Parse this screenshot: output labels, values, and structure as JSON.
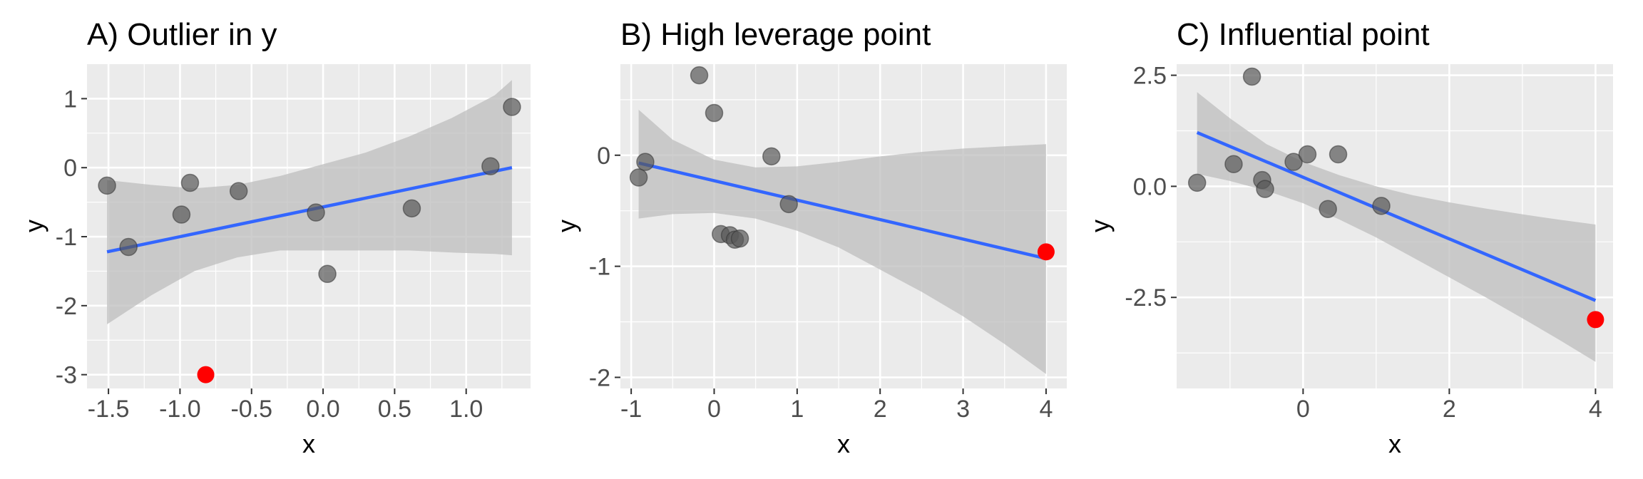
{
  "colors": {
    "panel_background": "#ebebeb",
    "grid_major": "#ffffff",
    "confidence_band": "#bdbdbd",
    "fit_line": "#3366ff",
    "points": "#595959",
    "highlight_point": "#ff0000"
  },
  "chart_data": [
    {
      "type": "scatter",
      "title": "A) Outlier in y",
      "xlabel": "x",
      "ylabel": "y",
      "xlim": [
        -1.65,
        1.45
      ],
      "ylim": [
        -3.2,
        1.5
      ],
      "xticks": [
        -1.5,
        -1.0,
        -0.5,
        0.0,
        0.5,
        1.0
      ],
      "xtick_labels": [
        "-1.5",
        "-1.0",
        "-0.5",
        "0.0",
        "0.5",
        "1.0"
      ],
      "yticks": [
        -3,
        -2,
        -1,
        0,
        1
      ],
      "ytick_labels": [
        "-3",
        "-2",
        "-1",
        "0",
        "1"
      ],
      "grid": true,
      "points": [
        {
          "x": -1.51,
          "y": -0.26
        },
        {
          "x": -1.36,
          "y": -1.15
        },
        {
          "x": -0.99,
          "y": -0.68
        },
        {
          "x": -0.93,
          "y": -0.22
        },
        {
          "x": -0.59,
          "y": -0.34
        },
        {
          "x": -0.05,
          "y": -0.65
        },
        {
          "x": 0.03,
          "y": -1.54
        },
        {
          "x": 0.62,
          "y": -0.59
        },
        {
          "x": 1.17,
          "y": 0.02
        },
        {
          "x": 1.32,
          "y": 0.88
        }
      ],
      "highlight": [
        {
          "x": -0.82,
          "y": -3.0
        }
      ],
      "fit": {
        "x": [
          -1.51,
          1.32
        ],
        "y": [
          -1.22,
          0.0
        ]
      },
      "band": [
        {
          "x": -1.51,
          "lo": -2.27,
          "hi": -0.18
        },
        {
          "x": -1.2,
          "lo": -1.85,
          "hi": -0.25
        },
        {
          "x": -0.9,
          "lo": -1.5,
          "hi": -0.3
        },
        {
          "x": -0.6,
          "lo": -1.3,
          "hi": -0.25
        },
        {
          "x": -0.3,
          "lo": -1.2,
          "hi": -0.12
        },
        {
          "x": 0.0,
          "lo": -1.2,
          "hi": 0.05
        },
        {
          "x": 0.3,
          "lo": -1.2,
          "hi": 0.22
        },
        {
          "x": 0.6,
          "lo": -1.2,
          "hi": 0.45
        },
        {
          "x": 0.9,
          "lo": -1.23,
          "hi": 0.72
        },
        {
          "x": 1.2,
          "lo": -1.25,
          "hi": 1.05
        },
        {
          "x": 1.32,
          "lo": -1.27,
          "hi": 1.27
        }
      ]
    },
    {
      "type": "scatter",
      "title": "B) High leverage point",
      "xlabel": "x",
      "ylabel": "y",
      "xlim": [
        -1.13,
        4.25
      ],
      "ylim": [
        -2.1,
        0.82
      ],
      "xticks": [
        -1,
        0,
        1,
        2,
        3,
        4
      ],
      "xtick_labels": [
        "-1",
        "0",
        "1",
        "2",
        "3",
        "4"
      ],
      "yticks": [
        -2,
        -1,
        0
      ],
      "ytick_labels": [
        "-2",
        "-1",
        "0"
      ],
      "grid": true,
      "points": [
        {
          "x": -0.91,
          "y": -0.2
        },
        {
          "x": -0.83,
          "y": -0.06
        },
        {
          "x": -0.18,
          "y": 0.72
        },
        {
          "x": 0.0,
          "y": 0.38
        },
        {
          "x": 0.08,
          "y": -0.71
        },
        {
          "x": 0.19,
          "y": -0.72
        },
        {
          "x": 0.25,
          "y": -0.76
        },
        {
          "x": 0.31,
          "y": -0.75
        },
        {
          "x": 0.69,
          "y": -0.01
        },
        {
          "x": 0.9,
          "y": -0.44
        }
      ],
      "highlight": [
        {
          "x": 4.0,
          "y": -0.87
        }
      ],
      "fit": {
        "x": [
          -0.91,
          4.0
        ],
        "y": [
          -0.07,
          -0.93
        ]
      },
      "band": [
        {
          "x": -0.91,
          "lo": -0.57,
          "hi": 0.41
        },
        {
          "x": -0.5,
          "lo": -0.53,
          "hi": 0.14
        },
        {
          "x": 0.0,
          "lo": -0.52,
          "hi": -0.04
        },
        {
          "x": 0.5,
          "lo": -0.57,
          "hi": -0.11
        },
        {
          "x": 1.0,
          "lo": -0.68,
          "hi": -0.1
        },
        {
          "x": 1.5,
          "lo": -0.83,
          "hi": -0.06
        },
        {
          "x": 2.0,
          "lo": -1.03,
          "hi": -0.01
        },
        {
          "x": 2.5,
          "lo": -1.23,
          "hi": 0.03
        },
        {
          "x": 3.0,
          "lo": -1.45,
          "hi": 0.06
        },
        {
          "x": 3.5,
          "lo": -1.7,
          "hi": 0.08
        },
        {
          "x": 4.0,
          "lo": -1.97,
          "hi": 0.1
        }
      ]
    },
    {
      "type": "scatter",
      "title": "C) Influential point",
      "xlabel": "x",
      "ylabel": "y",
      "xlim": [
        -1.73,
        4.24
      ],
      "ylim": [
        -4.55,
        2.75
      ],
      "xticks": [
        0,
        2,
        4
      ],
      "xtick_labels": [
        "0",
        "2",
        "4"
      ],
      "yticks": [
        -2.5,
        0.0,
        2.5
      ],
      "ytick_labels": [
        "-2.5",
        "0.0",
        "2.5"
      ],
      "grid": true,
      "points": [
        {
          "x": -1.45,
          "y": 0.08
        },
        {
          "x": -0.95,
          "y": 0.5
        },
        {
          "x": -0.7,
          "y": 2.47
        },
        {
          "x": -0.56,
          "y": 0.14
        },
        {
          "x": -0.52,
          "y": -0.06
        },
        {
          "x": -0.13,
          "y": 0.55
        },
        {
          "x": 0.06,
          "y": 0.72
        },
        {
          "x": 0.34,
          "y": -0.51
        },
        {
          "x": 0.48,
          "y": 0.72
        },
        {
          "x": 1.07,
          "y": -0.44
        }
      ],
      "highlight": [
        {
          "x": 4.0,
          "y": -3.0
        }
      ],
      "fit": {
        "x": [
          -1.45,
          4.0
        ],
        "y": [
          1.21,
          -2.57
        ]
      },
      "band": [
        {
          "x": -1.45,
          "lo": 0.28,
          "hi": 2.12
        },
        {
          "x": -1.0,
          "lo": 0.12,
          "hi": 1.53
        },
        {
          "x": -0.5,
          "lo": -0.1,
          "hi": 0.95
        },
        {
          "x": 0.0,
          "lo": -0.38,
          "hi": 0.55
        },
        {
          "x": 0.5,
          "lo": -0.75,
          "hi": 0.25
        },
        {
          "x": 1.0,
          "lo": -1.15,
          "hi": 0.0
        },
        {
          "x": 1.5,
          "lo": -1.6,
          "hi": -0.2
        },
        {
          "x": 2.0,
          "lo": -2.05,
          "hi": -0.36
        },
        {
          "x": 2.5,
          "lo": -2.5,
          "hi": -0.5
        },
        {
          "x": 3.0,
          "lo": -2.97,
          "hi": -0.63
        },
        {
          "x": 3.5,
          "lo": -3.45,
          "hi": -0.75
        },
        {
          "x": 4.0,
          "lo": -3.95,
          "hi": -0.86
        }
      ]
    }
  ]
}
